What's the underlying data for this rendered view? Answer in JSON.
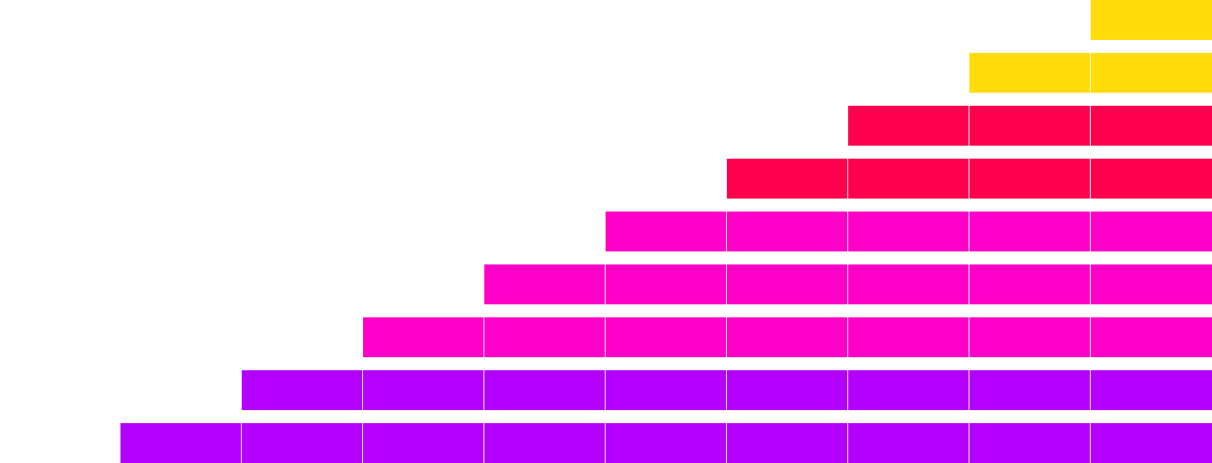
{
  "grid": {
    "rows": [
      {
        "filled_from_right": 1,
        "color": "#FFDC0A"
      },
      {
        "filled_from_right": 2,
        "color": "#FFDC0A"
      },
      {
        "filled_from_right": 3,
        "color": "#FF0050"
      },
      {
        "filled_from_right": 4,
        "color": "#FF0050"
      },
      {
        "filled_from_right": 5,
        "color": "#FF00C8"
      },
      {
        "filled_from_right": 6,
        "color": "#FF00C8"
      },
      {
        "filled_from_right": 7,
        "color": "#FF00C8"
      },
      {
        "filled_from_right": 8,
        "color": "#B400FF"
      },
      {
        "filled_from_right": 9,
        "color": "#B400FF"
      }
    ],
    "columns": 10,
    "background_color": "#FFFFFF"
  }
}
